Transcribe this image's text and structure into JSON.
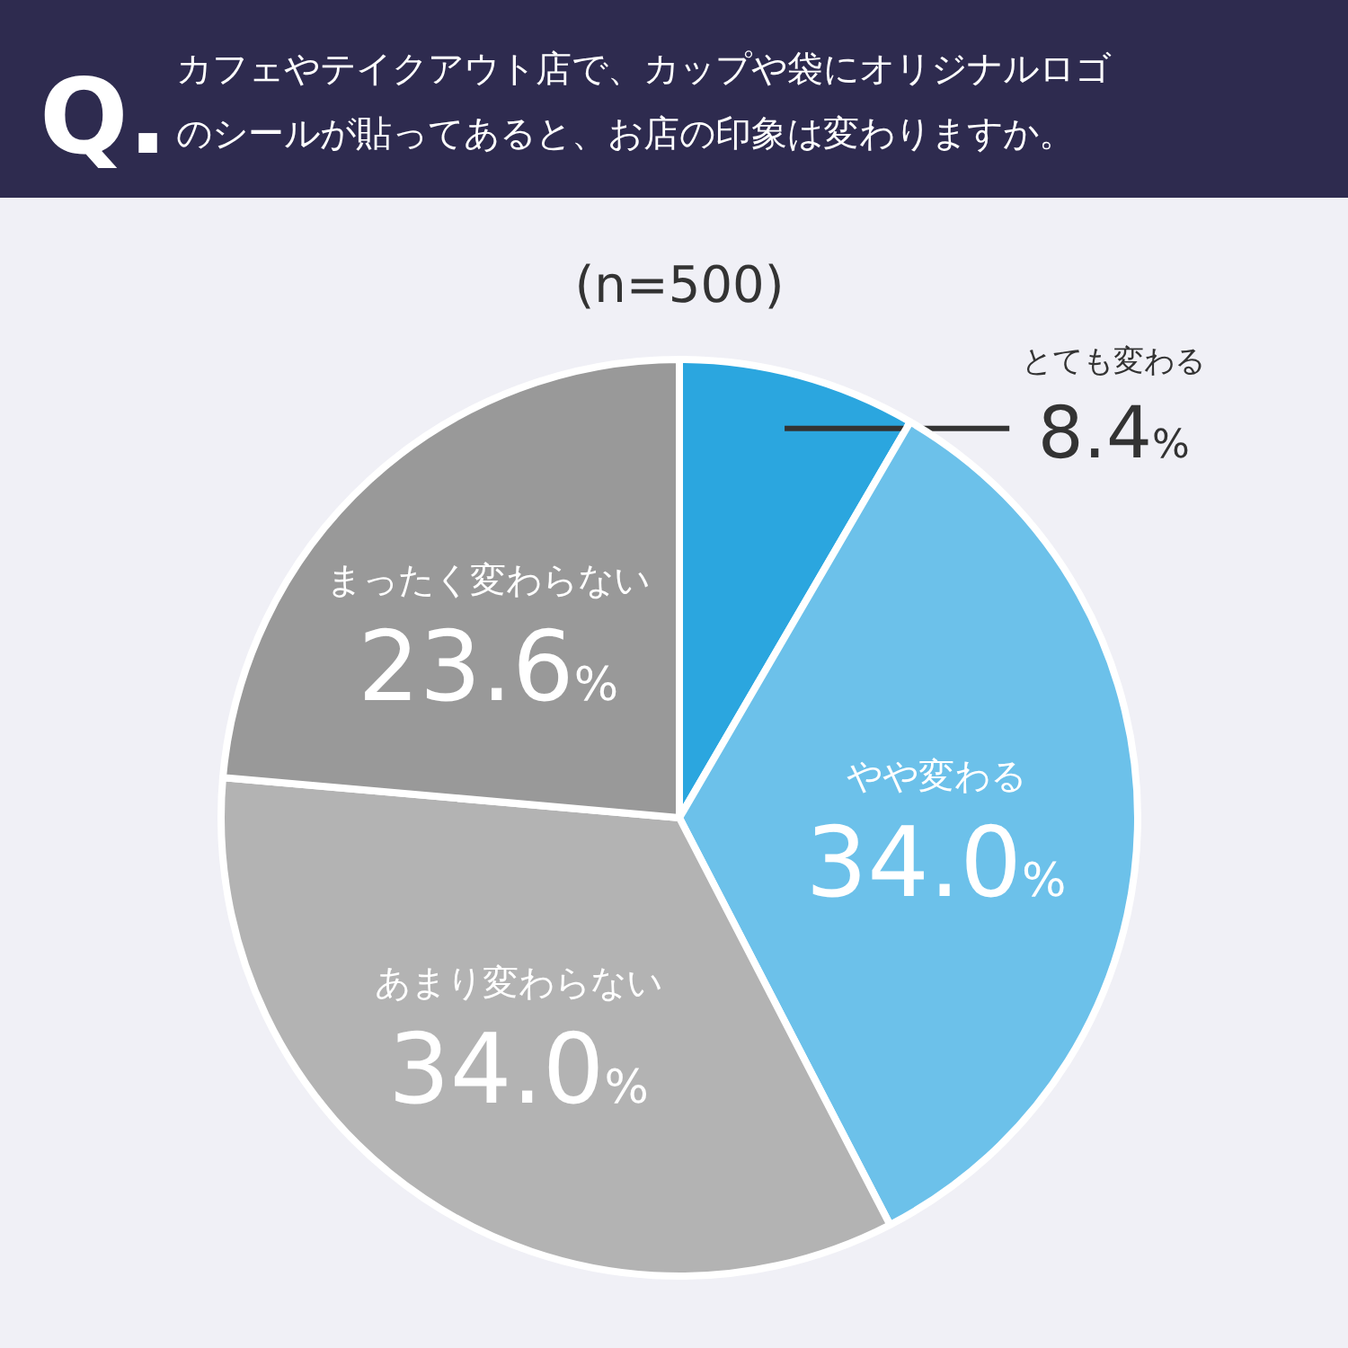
{
  "chart_data": {
    "type": "pie",
    "title": "Q.",
    "subtitle": "カフェやテイクアウト店で、カップや袋にオリジナルロゴのシールが貼ってあると、お店の印象は変わりますか。",
    "annotations": [
      "(n=500)"
    ],
    "categories": [
      "とても変わる",
      "やや変わる",
      "あまり変わらない",
      "まったく変わらない"
    ],
    "values": [
      8.4,
      34.0,
      34.0,
      23.6
    ],
    "value_labels": [
      "8.4%",
      "34.0%",
      "34.0%",
      "23.6%"
    ],
    "colors": [
      "#2ba6df",
      "#6cc1ea",
      "#b3b3b3",
      "#999999"
    ],
    "legend": false
  }
}
